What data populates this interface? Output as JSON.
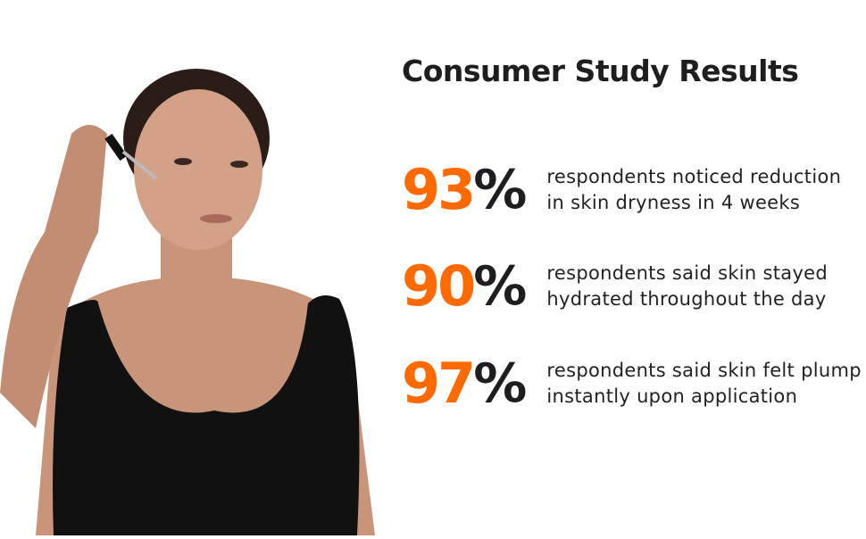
{
  "title": "Consumer Study Results",
  "colors": {
    "accent": "#ff6a00",
    "text": "#1e1e1e"
  },
  "photo": {
    "alt_subject": "woman-applying-serum-dropper"
  },
  "stats": [
    {
      "value": "93",
      "unit": "%",
      "line1": "respondents noticed reduction",
      "line2": "in skin dryness in 4 weeks"
    },
    {
      "value": "90",
      "unit": "%",
      "line1": "respondents said skin stayed",
      "line2": "hydrated throughout the day"
    },
    {
      "value": "97",
      "unit": "%",
      "line1": "respondents said skin felt plump",
      "line2": "instantly upon application"
    }
  ]
}
